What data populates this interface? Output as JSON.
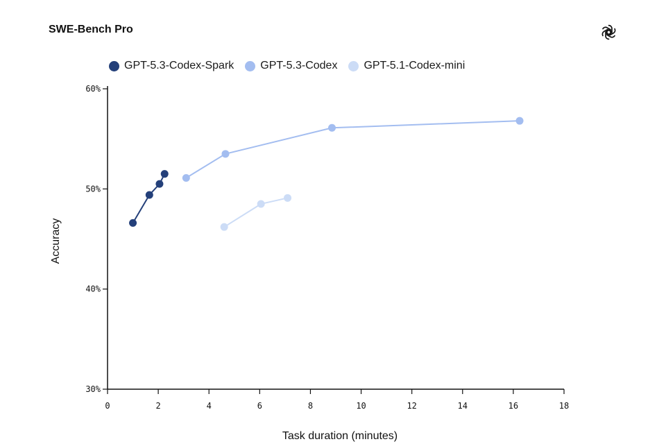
{
  "chart_data": {
    "type": "line",
    "title": "SWE-Bench Pro",
    "xlabel": "Task duration (minutes)",
    "ylabel": "Accuracy",
    "xlim": [
      0,
      18
    ],
    "ylim": [
      30,
      60
    ],
    "xticks": [
      0,
      2,
      4,
      6,
      8,
      10,
      12,
      14,
      16,
      18
    ],
    "xtick_labels": [
      "0",
      "2",
      "4",
      "6",
      "8",
      "10",
      "12",
      "14",
      "16",
      "18"
    ],
    "yticks": [
      30,
      40,
      50,
      60
    ],
    "ytick_labels": [
      "30%",
      "40%",
      "50%",
      "60%"
    ],
    "grid": false,
    "legend_position": "top-left",
    "series": [
      {
        "name": "GPT-5.3-Codex-Spark",
        "color": "#24407a",
        "x": [
          1.0,
          1.65,
          2.05,
          2.25
        ],
        "y": [
          46.6,
          49.4,
          50.5,
          51.5
        ]
      },
      {
        "name": "GPT-5.3-Codex",
        "color": "#a3bdf0",
        "x": [
          3.1,
          4.65,
          8.85,
          16.25
        ],
        "y": [
          51.1,
          53.5,
          56.1,
          56.8
        ]
      },
      {
        "name": "GPT-5.1-Codex-mini",
        "color": "#ccdcf6",
        "x": [
          4.6,
          6.05,
          7.1
        ],
        "y": [
          46.2,
          48.5,
          49.1
        ]
      }
    ]
  },
  "icons": {
    "brand": "openai-logo-icon"
  }
}
